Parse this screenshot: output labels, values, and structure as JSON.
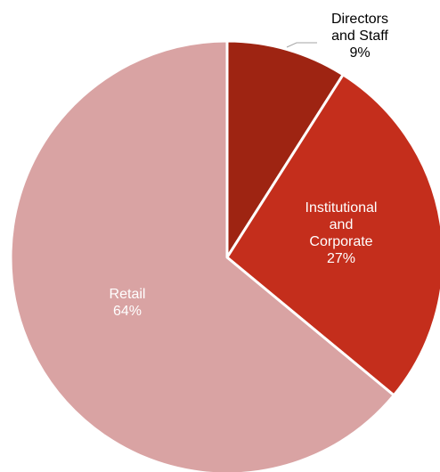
{
  "chart_data": {
    "type": "pie",
    "slices": [
      {
        "name": "Directors and Staff",
        "label_lines": [
          "Directors",
          "and Staff"
        ],
        "value": 9,
        "value_label": "9%",
        "color": "#9e2412",
        "label_color": "#000000"
      },
      {
        "name": "Institutional and Corporate",
        "label_lines": [
          "Institutional",
          "and",
          "Corporate"
        ],
        "value": 27,
        "value_label": "27%",
        "color": "#c42e1c",
        "label_color": "#ffffff"
      },
      {
        "name": "Retail",
        "label_lines": [
          "Retail"
        ],
        "value": 64,
        "value_label": "64%",
        "color": "#d9a3a3",
        "label_color": "#ffffff"
      }
    ],
    "start": "12 o'clock",
    "direction": "clockwise",
    "legend": "none"
  }
}
